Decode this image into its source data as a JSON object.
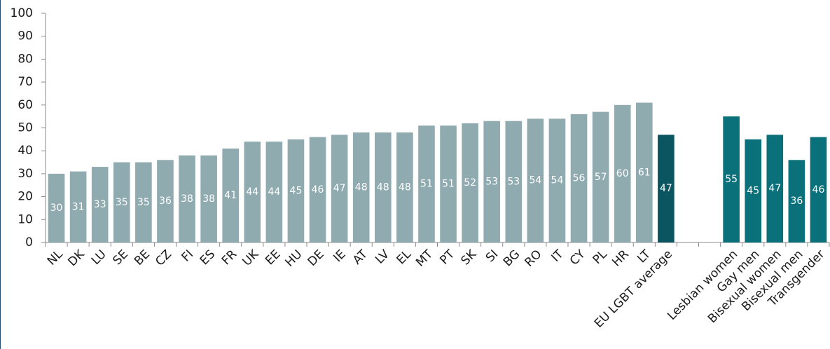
{
  "chart_data": {
    "type": "bar",
    "categories": [
      "NL",
      "DK",
      "LU",
      "SE",
      "BE",
      "CZ",
      "FI",
      "ES",
      "FR",
      "UK",
      "EE",
      "HU",
      "DE",
      "IE",
      "AT",
      "LV",
      "EL",
      "MT",
      "PT",
      "SK",
      "SI",
      "BG",
      "RO",
      "IT",
      "CY",
      "PL",
      "HR",
      "LT",
      "EU LGBT average",
      null,
      null,
      "Lesbian women",
      "Gay men",
      "Bisexual women",
      "Bisexual men",
      "Transgender"
    ],
    "values": [
      30,
      31,
      33,
      35,
      35,
      36,
      38,
      38,
      41,
      44,
      44,
      45,
      46,
      47,
      48,
      48,
      48,
      51,
      51,
      52,
      53,
      53,
      54,
      54,
      56,
      57,
      60,
      61,
      47,
      null,
      null,
      55,
      45,
      47,
      36,
      46
    ],
    "colors": [
      "#8fabb0",
      "#8fabb0",
      "#8fabb0",
      "#8fabb0",
      "#8fabb0",
      "#8fabb0",
      "#8fabb0",
      "#8fabb0",
      "#8fabb0",
      "#8fabb0",
      "#8fabb0",
      "#8fabb0",
      "#8fabb0",
      "#8fabb0",
      "#8fabb0",
      "#8fabb0",
      "#8fabb0",
      "#8fabb0",
      "#8fabb0",
      "#8fabb0",
      "#8fabb0",
      "#8fabb0",
      "#8fabb0",
      "#8fabb0",
      "#8fabb0",
      "#8fabb0",
      "#8fabb0",
      "#8fabb0",
      "#0b5560",
      null,
      null,
      "#0a717a",
      "#0a717a",
      "#0a717a",
      "#0a717a",
      "#0a717a"
    ],
    "ylim": [
      0,
      100
    ],
    "yticks": [
      0,
      10,
      20,
      30,
      40,
      50,
      60,
      70,
      80,
      90,
      100
    ],
    "grid": false
  }
}
